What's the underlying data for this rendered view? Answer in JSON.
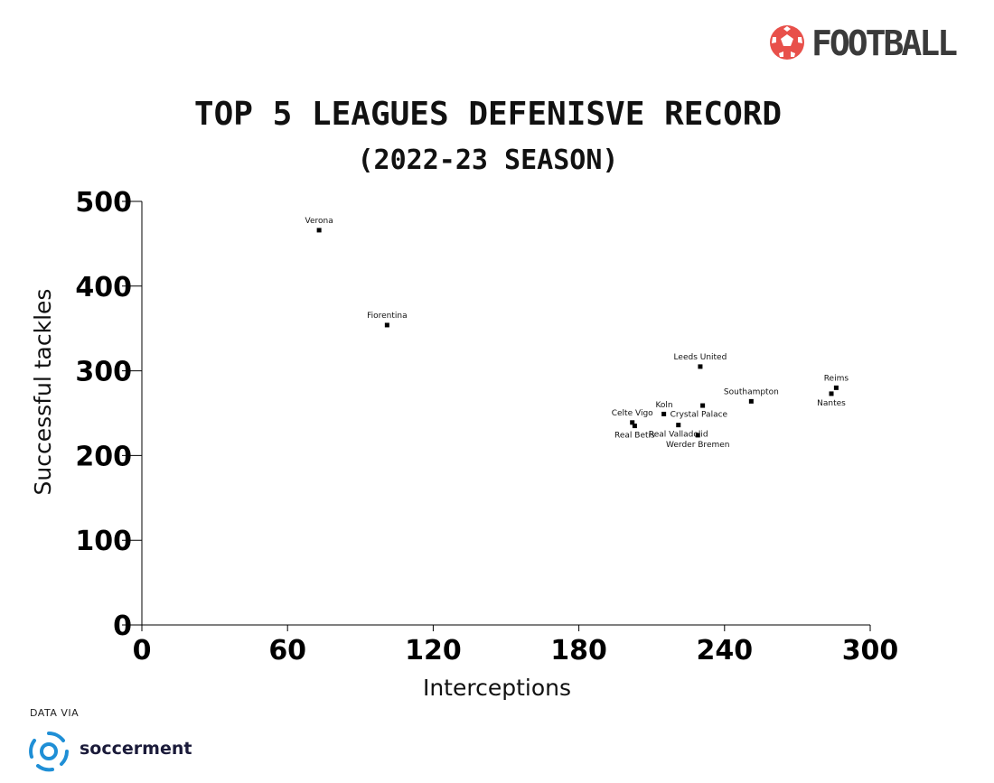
{
  "brand": {
    "name": "FOOTBALL",
    "accent": "#e8504a"
  },
  "source": {
    "label": "DATA VIA",
    "name": "soccerment",
    "color": "#1f8fd6"
  },
  "chart_data": {
    "type": "scatter",
    "title": "TOP 5 LEAGUES DEFENISVE RECORD",
    "subtitle": "(2022-23 SEASON)",
    "xlabel": "Interceptions",
    "ylabel": "Successful tackles",
    "xlim": [
      0,
      300
    ],
    "ylim": [
      0,
      500
    ],
    "xticks": [
      0,
      60,
      120,
      180,
      240,
      300
    ],
    "yticks": [
      0,
      100,
      200,
      300,
      400,
      500
    ],
    "grid": false,
    "highlight_color": "#e8202a",
    "points": [
      {
        "label": "Verona",
        "x": 73,
        "y": 466,
        "anchor": "above"
      },
      {
        "label": "Fiorentina",
        "x": 101,
        "y": 354,
        "anchor": "above"
      },
      {
        "label": "Leeds United",
        "x": 230,
        "y": 305,
        "anchor": "above"
      },
      {
        "label": "Reims",
        "x": 286,
        "y": 280,
        "anchor": "above",
        "highlight": true
      },
      {
        "label": "Nantes",
        "x": 284,
        "y": 273,
        "anchor": "below"
      },
      {
        "label": "Southampton",
        "x": 251,
        "y": 264,
        "anchor": "above"
      },
      {
        "label": "Koln",
        "x": 231,
        "y": 259,
        "anchor": "left-above"
      },
      {
        "label": "Crystal Palace",
        "x": 215,
        "y": 249,
        "anchor": "right"
      },
      {
        "label": "Celte Vigo",
        "x": 202,
        "y": 239,
        "anchor": "above"
      },
      {
        "label": "Real Betis",
        "x": 203,
        "y": 235,
        "anchor": "below"
      },
      {
        "label": "Real Valladolid",
        "x": 221,
        "y": 236,
        "anchor": "below"
      },
      {
        "label": "Werder Bremen",
        "x": 229,
        "y": 224,
        "anchor": "below"
      }
    ]
  }
}
